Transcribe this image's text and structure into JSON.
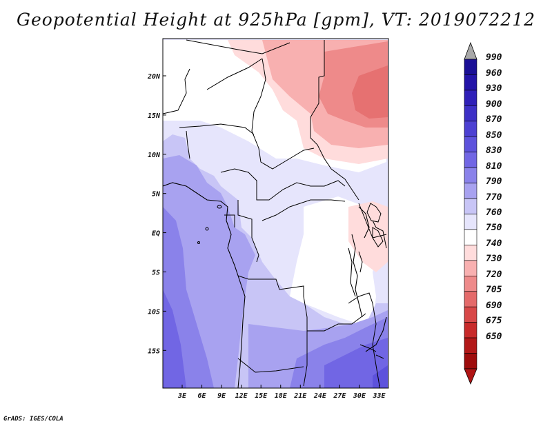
{
  "title": "Geopotential Height at 925hPa [gpm], VT: 2019072212",
  "footer": "GrADS: IGES/COLA",
  "map": {
    "x_ticks": [
      "3E",
      "6E",
      "9E",
      "12E",
      "15E",
      "18E",
      "21E",
      "24E",
      "27E",
      "30E",
      "33E"
    ],
    "y_ticks": [
      "20N",
      "15N",
      "10N",
      "5N",
      "EQ",
      "5S",
      "10S",
      "15S"
    ]
  },
  "legend": {
    "levels": [
      "990",
      "960",
      "930",
      "900",
      "870",
      "850",
      "830",
      "810",
      "790",
      "770",
      "760",
      "750",
      "740",
      "730",
      "720",
      "705",
      "690",
      "675",
      "650"
    ],
    "colors": [
      "#1a0f96",
      "#2314a8",
      "#2f20b8",
      "#3d30c6",
      "#4c40d2",
      "#5d52dc",
      "#7166e4",
      "#8a82ea",
      "#a8a2f0",
      "#c8c5f6",
      "#e6e5fc",
      "#ffffff",
      "#ffdcdc",
      "#f8b0b0",
      "#ee8a8a",
      "#e46a6a",
      "#d84848",
      "#c82a2a",
      "#b21818",
      "#9e0c0c"
    ],
    "arrow_top_color": "#a8a8a8",
    "arrow_bottom_color": "#b01414"
  }
}
